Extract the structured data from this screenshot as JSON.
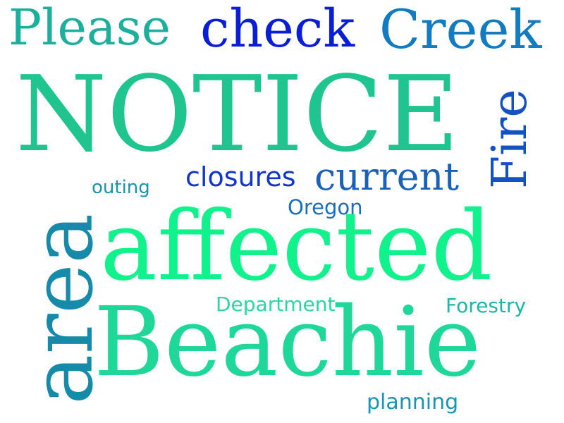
{
  "words": {
    "notice": {
      "text": "NOTICE",
      "color": "#1fc48f"
    },
    "please": {
      "text": "Please",
      "color": "#1dae9c"
    },
    "check": {
      "text": "check",
      "color": "#0a1ed6"
    },
    "creek": {
      "text": "Creek",
      "color": "#137bbf"
    },
    "fire": {
      "text": "Fire",
      "color": "#1452c4"
    },
    "current": {
      "text": "current",
      "color": "#1a62b6"
    },
    "closures": {
      "text": "closures",
      "color": "#1236c9"
    },
    "outing": {
      "text": "outing",
      "color": "#1a95a8"
    },
    "oregon": {
      "text": "Oregon",
      "color": "#1a6fbc"
    },
    "area": {
      "text": "area",
      "color": "#168aa8"
    },
    "affected": {
      "text": "affected",
      "color": "#12f28c"
    },
    "department": {
      "text": "Department",
      "color": "#2ad7a0"
    },
    "forestry": {
      "text": "Forestry",
      "color": "#1ab7a5"
    },
    "beachie": {
      "text": "Beachie",
      "color": "#20d79a"
    },
    "planning": {
      "text": "planning",
      "color": "#1a93b4"
    }
  }
}
